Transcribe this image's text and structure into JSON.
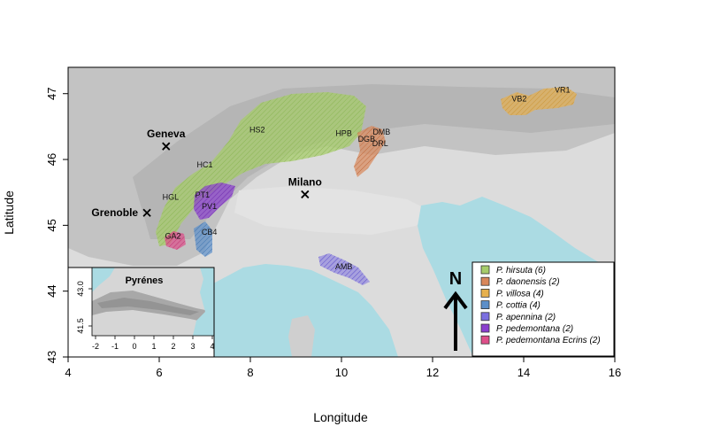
{
  "axes": {
    "xlabel": "Longitude",
    "ylabel": "Latitude",
    "xlim": [
      4,
      16
    ],
    "ylim": [
      43,
      47.4
    ],
    "xticks": [
      "4",
      "6",
      "8",
      "10",
      "12",
      "14",
      "16"
    ],
    "yticks": [
      "43",
      "44",
      "45",
      "46",
      "47"
    ]
  },
  "cities": [
    {
      "name": "Geneva",
      "lon": 6.15,
      "lat": 46.2,
      "label_side": "above"
    },
    {
      "name": "Milano",
      "lon": 9.2,
      "lat": 45.47,
      "label_side": "above"
    },
    {
      "name": "Grenoble",
      "lon": 5.73,
      "lat": 45.19,
      "label_side": "left"
    }
  ],
  "sites": [
    {
      "code": "HS2",
      "lon": 8.15,
      "lat": 46.45
    },
    {
      "code": "HPB",
      "lon": 10.05,
      "lat": 46.4
    },
    {
      "code": "DMB",
      "lon": 10.88,
      "lat": 46.42
    },
    {
      "code": "DGB",
      "lon": 10.55,
      "lat": 46.31
    },
    {
      "code": "DRL",
      "lon": 10.85,
      "lat": 46.24
    },
    {
      "code": "VB2",
      "lon": 13.9,
      "lat": 46.92
    },
    {
      "code": "VR1",
      "lon": 14.85,
      "lat": 47.06
    },
    {
      "code": "HC1",
      "lon": 7.0,
      "lat": 45.92
    },
    {
      "code": "PT1",
      "lon": 6.95,
      "lat": 45.46
    },
    {
      "code": "HGL",
      "lon": 6.25,
      "lat": 45.43
    },
    {
      "code": "PV1",
      "lon": 7.1,
      "lat": 45.29
    },
    {
      "code": "CB4",
      "lon": 7.1,
      "lat": 44.9
    },
    {
      "code": "GA2",
      "lon": 6.3,
      "lat": 44.84
    },
    {
      "code": "AMB",
      "lon": 10.05,
      "lat": 44.37
    }
  ],
  "north_arrow": {
    "label": "N"
  },
  "inset": {
    "title": "Pyrénes",
    "xticks": [
      "-2",
      "-1",
      "0",
      "1",
      "2",
      "3",
      "4"
    ],
    "yticks": [
      "41.5",
      "43.0"
    ]
  },
  "legend": {
    "items": [
      {
        "species": "P. hirsuta",
        "count": "(6)",
        "color": "#a6cc6b"
      },
      {
        "species": "P. daonensis",
        "count": "(2)",
        "color": "#d9875a"
      },
      {
        "species": "P. villosa",
        "count": "(4)",
        "color": "#e6b04e"
      },
      {
        "species": "P. cottia",
        "count": "(4)",
        "color": "#5c8fc9"
      },
      {
        "species": "P. apennina",
        "count": "(2)",
        "color": "#7b6fe0"
      },
      {
        "species": "P. pedemontana",
        "count": "(2)",
        "color": "#8b3fcf"
      },
      {
        "species": "P. pedemontana Ecrins",
        "count": "(2)",
        "color": "#de4f8a"
      }
    ]
  },
  "colors": {
    "sea": "#abdbe3",
    "land": "#d3d3d3",
    "highland": "#b8b8b8"
  }
}
